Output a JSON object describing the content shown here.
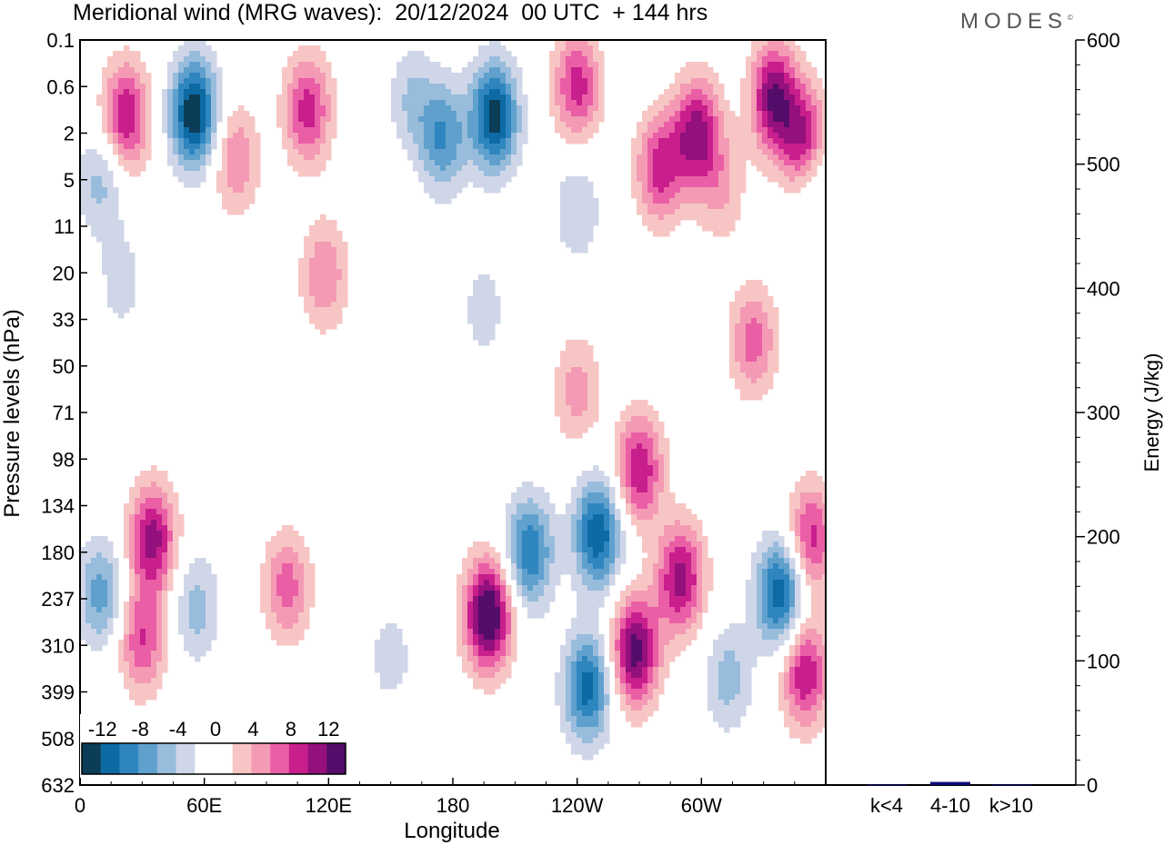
{
  "title": "Meridional wind (MRG waves):  20/12/2024  00 UTC  + 144 hrs",
  "logo": "MODES",
  "logo_mark": "©",
  "chart_data": [
    {
      "type": "heatmap",
      "title": "Meridional wind (MRG waves):  20/12/2024  00 UTC  + 144 hrs",
      "xlabel": "Longitude",
      "ylabel": "Pressure levels (hPa)",
      "x_ticks": [
        "0",
        "60E",
        "120E",
        "180",
        "120W",
        "60W"
      ],
      "y_ticks": [
        "0.1",
        "0.6",
        "2",
        "5",
        "11",
        "20",
        "33",
        "50",
        "71",
        "98",
        "134",
        "180",
        "237",
        "310",
        "399",
        "508",
        "632"
      ],
      "colorbar": {
        "labels": [
          "-12",
          "-8",
          "-4",
          "0",
          "4",
          "8",
          "12"
        ],
        "levels": [
          -14,
          -12,
          -10,
          -8,
          -6,
          -4,
          -2,
          0,
          2,
          4,
          6,
          8,
          10,
          12,
          14
        ],
        "colors": [
          "#0b3d57",
          "#0d6aa3",
          "#2f86bf",
          "#5fa0cd",
          "#98bcdc",
          "#cfd6e8",
          "#ffffff",
          "#ffffff",
          "#f7c6c4",
          "#f49ab4",
          "#ea5ea6",
          "#c81f8c",
          "#93107d",
          "#540c6b"
        ]
      },
      "blobs": [
        {
          "lon": 55,
          "level": 1.2,
          "v": -14
        },
        {
          "lon": 22,
          "level": 1.3,
          "v": 10
        },
        {
          "lon": 110,
          "level": 1.1,
          "v": 9
        },
        {
          "lon": 160,
          "level": 0.8,
          "v": -4
        },
        {
          "lon": 200,
          "level": 1.3,
          "v": -13
        },
        {
          "lon": 175,
          "level": 2.2,
          "v": -8
        },
        {
          "lon": 240,
          "level": 0.6,
          "v": 9
        },
        {
          "lon": 298,
          "level": 2.0,
          "v": 11
        },
        {
          "lon": 335,
          "level": 0.8,
          "v": 12
        },
        {
          "lon": 350,
          "level": 2.4,
          "v": 11
        },
        {
          "lon": 75,
          "level": 3.3,
          "v": 6
        },
        {
          "lon": 280,
          "level": 4.0,
          "v": 9
        },
        {
          "lon": 310,
          "level": 6.0,
          "v": 4
        },
        {
          "lon": 10,
          "level": 5.0,
          "v": -5
        },
        {
          "lon": 355,
          "level": 5.0,
          "v": -5
        },
        {
          "lon": 240,
          "level": 8.2,
          "v": -4
        },
        {
          "lon": 118,
          "level": 20.5,
          "v": 6
        },
        {
          "lon": 20,
          "level": 22,
          "v": -3
        },
        {
          "lon": 195,
          "level": 30,
          "v": -3
        },
        {
          "lon": 325,
          "level": 40,
          "v": 7
        },
        {
          "lon": 35,
          "level": 165,
          "v": 11
        },
        {
          "lon": 30,
          "level": 300,
          "v": 8
        },
        {
          "lon": 10,
          "level": 230,
          "v": -7
        },
        {
          "lon": 56,
          "level": 250,
          "v": -5
        },
        {
          "lon": 100,
          "level": 220,
          "v": 7
        },
        {
          "lon": 150,
          "level": 330,
          "v": -3
        },
        {
          "lon": 197,
          "level": 260,
          "v": 15
        },
        {
          "lon": 217,
          "level": 180,
          "v": -10
        },
        {
          "lon": 250,
          "level": 160,
          "v": -12
        },
        {
          "lon": 245,
          "level": 390,
          "v": -11
        },
        {
          "lon": 268,
          "level": 320,
          "v": 13
        },
        {
          "lon": 270,
          "level": 105,
          "v": 10
        },
        {
          "lon": 290,
          "level": 210,
          "v": 11
        },
        {
          "lon": 338,
          "level": 230,
          "v": -12
        },
        {
          "lon": 353,
          "level": 165,
          "v": 9
        },
        {
          "lon": 350,
          "level": 360,
          "v": 10
        },
        {
          "lon": 313,
          "level": 370,
          "v": -5
        },
        {
          "lon": 240,
          "level": 60,
          "v": 5
        }
      ]
    },
    {
      "type": "bar",
      "categories": [
        "k<4",
        "4-10",
        "k>10"
      ],
      "values": [
        0,
        2.5,
        0
      ],
      "ylabel": "Energy (J/kg)",
      "ylim": [
        0,
        600
      ],
      "y_ticks": [
        "0",
        "100",
        "200",
        "300",
        "400",
        "500",
        "600"
      ],
      "bar_color": "#0a0a7a"
    }
  ]
}
